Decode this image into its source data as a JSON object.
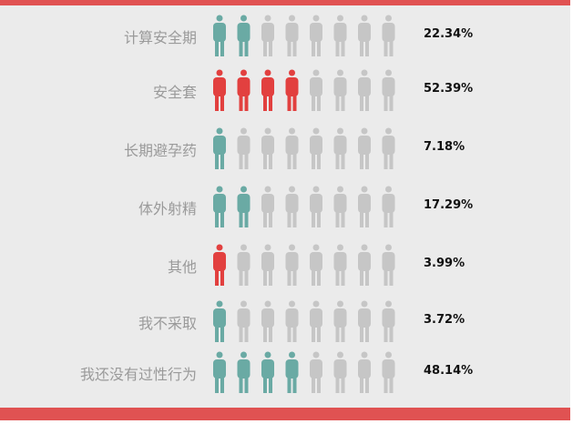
{
  "chart_data": {
    "type": "pictogram",
    "icon": "person-icon",
    "icons_per_row": 8,
    "categories": [
      "计算安全期",
      "安全套",
      "长期避孕药",
      "体外射精",
      "其他",
      "我不采取",
      "我还没有过性行为"
    ],
    "values": [
      "22.34%",
      "52.39%",
      "7.18%",
      "17.29%",
      "3.99%",
      "3.72%",
      "48.14%"
    ],
    "filled_icons": [
      2,
      4,
      1,
      2,
      1,
      1,
      4
    ],
    "highlight": [
      false,
      true,
      false,
      false,
      true,
      false,
      false
    ]
  },
  "colors": {
    "teal": "#6aaaa4",
    "red": "#e2403f",
    "gray": "#c6c6c6",
    "accent_bar": "#e05252",
    "background": "#ebebeb"
  }
}
